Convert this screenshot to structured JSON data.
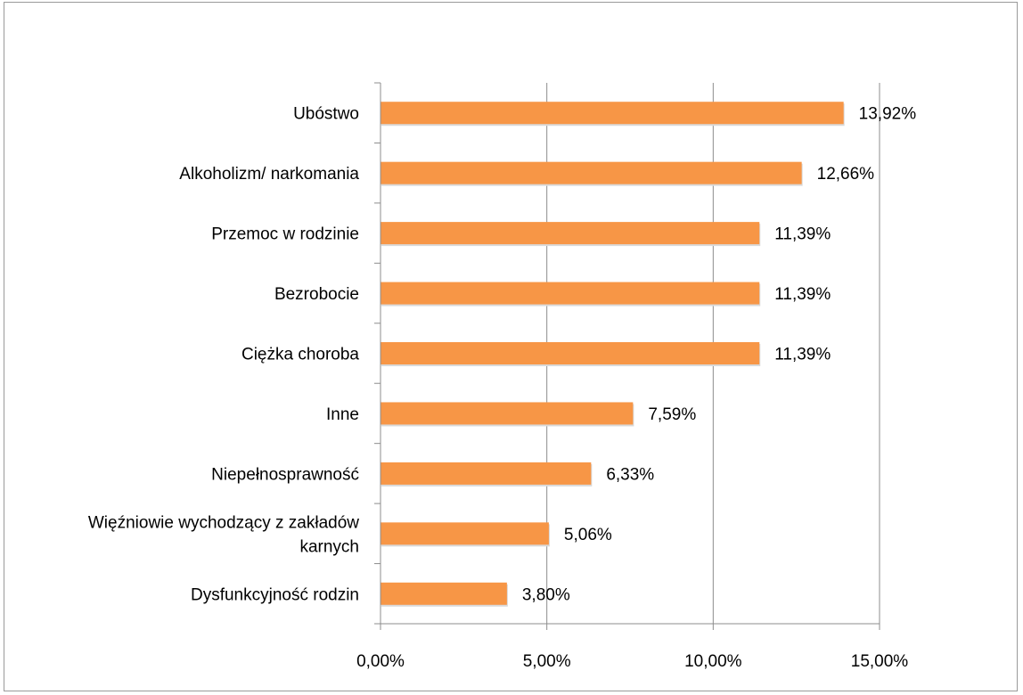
{
  "chart_data": {
    "type": "bar",
    "orientation": "horizontal",
    "categories": [
      "Ubóstwo",
      "Alkoholizm/ narkomania",
      "Przemoc w rodzinie",
      "Bezrobocie",
      "Ciężka choroba",
      "Inne",
      "Niepełnosprawność",
      "Więźniowie wychodzący z zakładów karnych",
      "Dysfunkcyjność rodzin"
    ],
    "category_label_lines": [
      [
        "Ubóstwo"
      ],
      [
        "Alkoholizm/ narkomania"
      ],
      [
        "Przemoc w rodzinie"
      ],
      [
        "Bezrobocie"
      ],
      [
        "Ciężka choroba"
      ],
      [
        "Inne"
      ],
      [
        "Niepełnosprawność"
      ],
      [
        "Więźniowie wychodzący z zakładów",
        "karnych"
      ],
      [
        "Dysfunkcyjność rodzin"
      ]
    ],
    "values": [
      13.92,
      12.66,
      11.39,
      11.39,
      11.39,
      7.59,
      6.33,
      5.06,
      3.8
    ],
    "data_labels": [
      "13,92%",
      "12,66%",
      "11,39%",
      "11,39%",
      "11,39%",
      "7,59%",
      "6,33%",
      "5,06%",
      "3,80%"
    ],
    "x_ticks": [
      0,
      5,
      10,
      15
    ],
    "x_tick_labels": [
      "0,00%",
      "5,00%",
      "10,00%",
      "15,00%"
    ],
    "xlim": [
      0,
      15
    ],
    "grid": "vertical",
    "legend": "none",
    "bar_color": "#F79646",
    "grid_color": "#8c8c8c",
    "title": "",
    "xlabel": "",
    "ylabel": ""
  }
}
